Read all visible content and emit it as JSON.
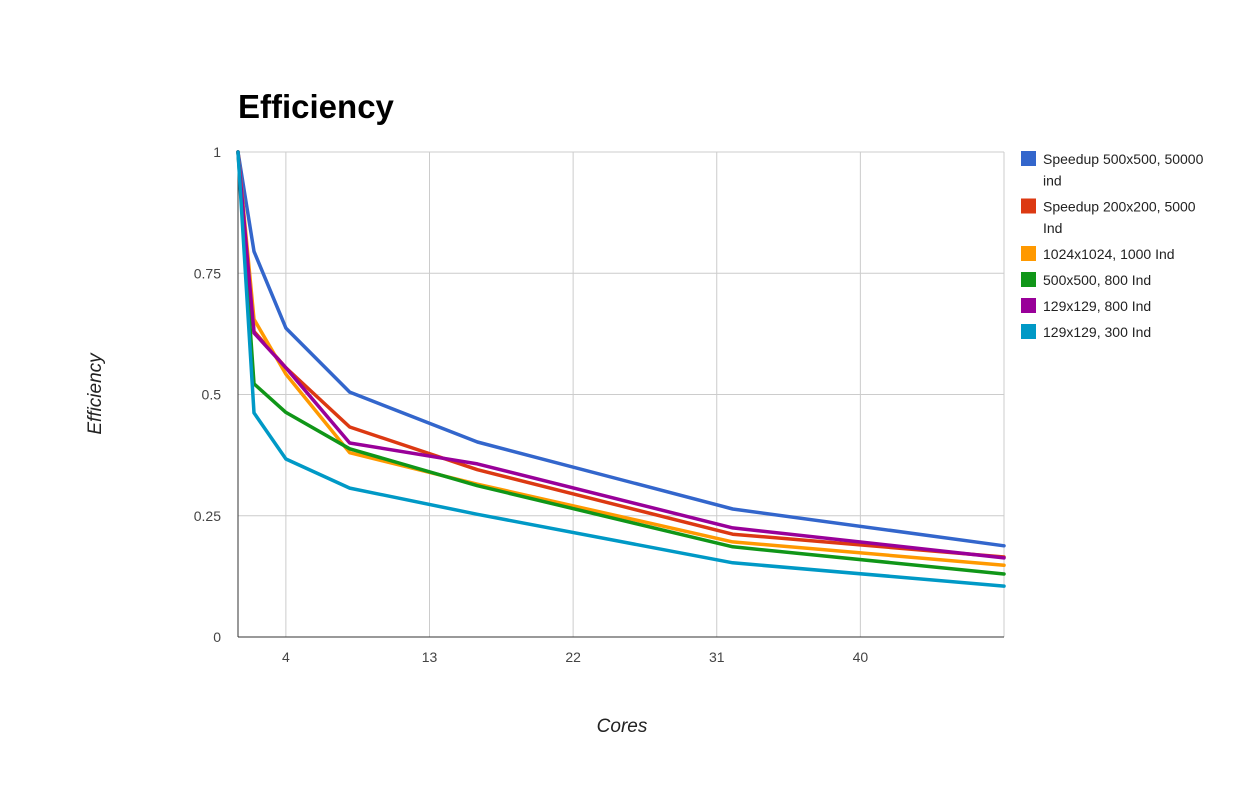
{
  "chart_data": {
    "type": "line",
    "title": "Efficiency",
    "xlabel": "Cores",
    "ylabel": "Efficiency",
    "xlim": [
      1,
      49
    ],
    "ylim": [
      0,
      1
    ],
    "x_ticks": [
      4,
      13,
      22,
      31,
      40
    ],
    "x_tick_labels": [
      "4",
      "13",
      "22",
      "31",
      "40"
    ],
    "y_ticks": [
      0,
      0.25,
      0.5,
      0.75,
      1
    ],
    "y_tick_labels": [
      "0",
      "0.25",
      "0.5",
      "0.75",
      "1"
    ],
    "grid": true,
    "legend_position": "right",
    "x": [
      1,
      2,
      4,
      8,
      16,
      32,
      49
    ],
    "series": [
      {
        "name": "Speedup 500x500, 50000 ind",
        "name_lines": [
          "Speedup 500x500, 50000",
          "ind"
        ],
        "color": "#3366cc",
        "values": [
          1,
          0.795,
          0.637,
          0.505,
          0.402,
          0.264,
          0.188
        ]
      },
      {
        "name": "Speedup 200x200, 5000 Ind",
        "name_lines": [
          "Speedup 200x200, 5000",
          "Ind"
        ],
        "color": "#dc3912",
        "values": [
          1,
          0.63,
          0.555,
          0.433,
          0.345,
          0.212,
          0.165
        ]
      },
      {
        "name": "1024x1024, 1000 Ind",
        "name_lines": [
          "1024x1024, 1000 Ind"
        ],
        "color": "#ff9900",
        "values": [
          1,
          0.655,
          0.542,
          0.38,
          0.315,
          0.196,
          0.148
        ]
      },
      {
        "name": "500x500, 800 Ind",
        "name_lines": [
          "500x500, 800 Ind"
        ],
        "color": "#109618",
        "values": [
          1,
          0.522,
          0.463,
          0.388,
          0.312,
          0.186,
          0.13
        ]
      },
      {
        "name": "129x129, 800 Ind",
        "name_lines": [
          "129x129, 800 Ind"
        ],
        "color": "#990099",
        "values": [
          1,
          0.627,
          0.555,
          0.4,
          0.357,
          0.225,
          0.163
        ]
      },
      {
        "name": "129x129, 300 Ind",
        "name_lines": [
          "129x129, 300 Ind"
        ],
        "color": "#0099c6",
        "values": [
          1,
          0.462,
          0.367,
          0.307,
          0.253,
          0.153,
          0.105
        ]
      }
    ]
  }
}
